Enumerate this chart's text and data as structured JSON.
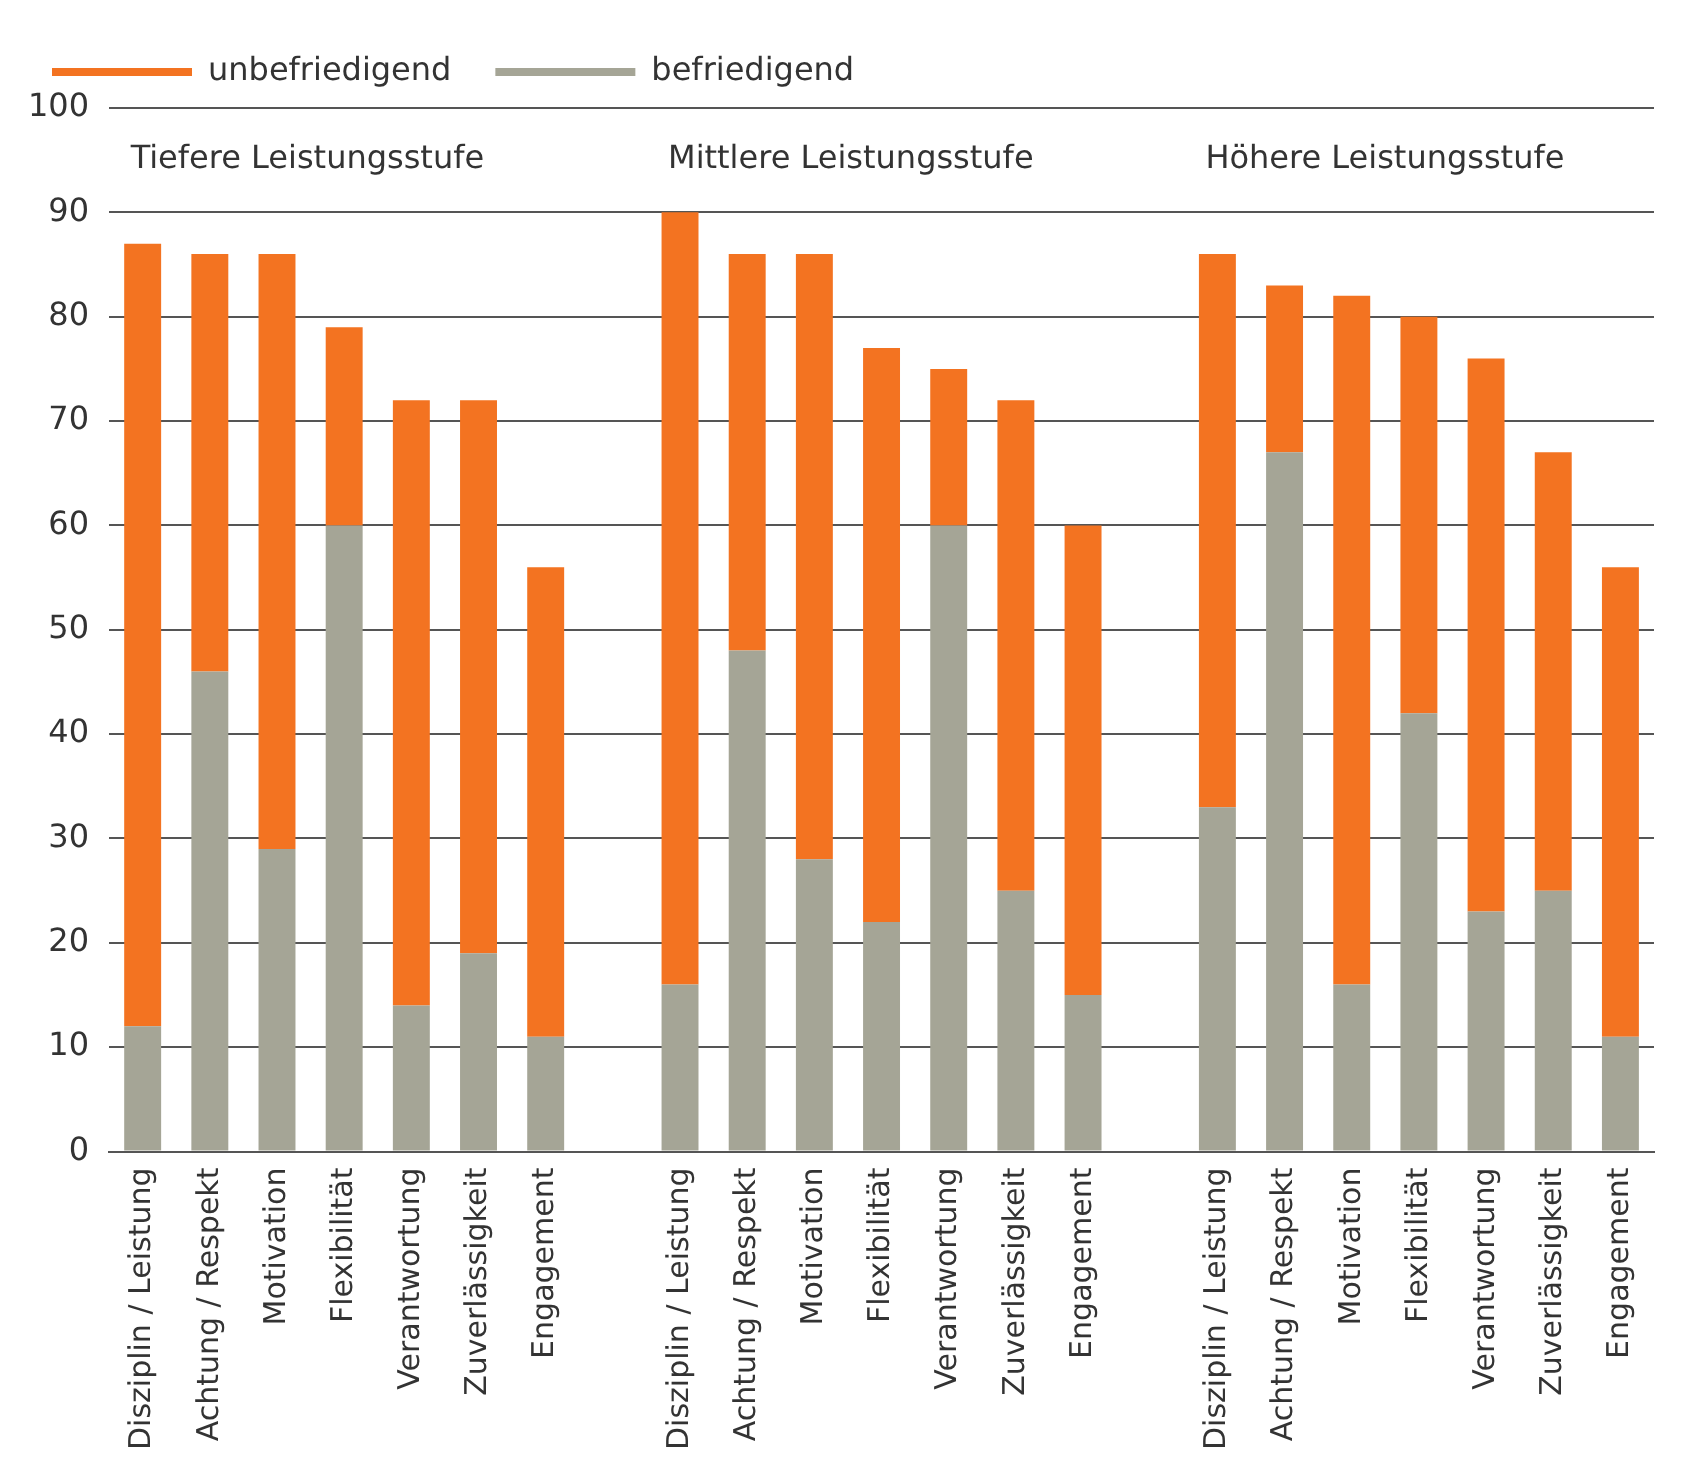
{
  "chart_data": {
    "type": "bar",
    "stacked": true,
    "categories": [
      "Disziplin / Leistung",
      "Achtung / Respekt",
      "Motivation",
      "Flexibilität",
      "Verantwortung",
      "Zuverlässigkeit",
      "Engagement",
      null,
      "Disziplin / Leistung",
      "Achtung / Respekt",
      "Motivation",
      "Flexibilität",
      "Verantwortung",
      "Zuverlässigkeit",
      "Engagement",
      null,
      "Disziplin / Leistung",
      "Achtung / Respekt",
      "Motivation",
      "Flexibilität",
      "Verantwortung",
      "Zuverlässigkeit",
      "Engagement"
    ],
    "series": [
      {
        "name": "befriedigend",
        "color": "#a5a596",
        "values": [
          12,
          46,
          29,
          60,
          14,
          19,
          11,
          null,
          16,
          48,
          28,
          22,
          60,
          25,
          15,
          null,
          33,
          67,
          16,
          42,
          23,
          25,
          11
        ]
      },
      {
        "name": "unbefriedigend",
        "color": "#f37321",
        "values": [
          75,
          40,
          57,
          19,
          58,
          53,
          45,
          null,
          74,
          38,
          58,
          55,
          15,
          47,
          45,
          null,
          53,
          16,
          66,
          38,
          53,
          42,
          45
        ]
      }
    ],
    "ylim": [
      0,
      100
    ],
    "yticks": [
      0,
      10,
      20,
      30,
      40,
      50,
      60,
      70,
      80,
      90,
      100
    ],
    "grid": "y",
    "legend": "top left",
    "annotations": [
      "Tiefere Leistungsstufe",
      "Mittlere Leistungsstufe",
      "Höhere Leistungsstufe"
    ]
  }
}
